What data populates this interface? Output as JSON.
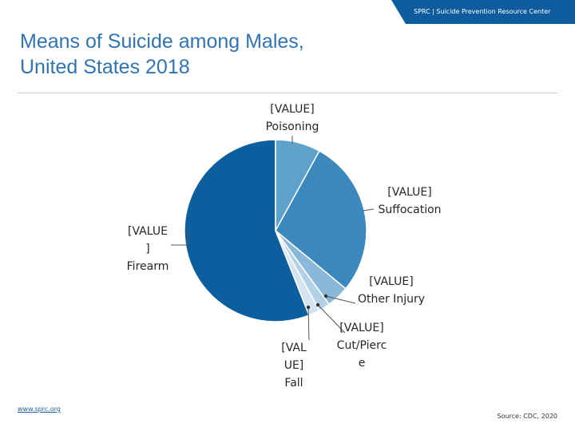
{
  "header": {
    "org_text": "SPRC  |  Suicide Prevention Resource Center"
  },
  "title": {
    "line1": "Means of Suicide among Males,",
    "line2": "United States 2018"
  },
  "colors": {
    "bar": "#0e5c9e",
    "firearm": "#0d5e9f",
    "poisoning": "#5ea1cb",
    "suffocation": "#3a88bd",
    "other_injury": "#8ab8d8",
    "cut": "#b3d1e6",
    "fall": "#d3e4f0"
  },
  "chart_data": {
    "type": "pie",
    "title": "Means of Suicide among Males, United States 2018",
    "slices": [
      {
        "name": "Firearm",
        "value": 56,
        "value_label": "[VALUE",
        "value_label_2": "]",
        "name_label": "Firearm"
      },
      {
        "name": "Poisoning",
        "value": 8,
        "value_label": "[VALUE]",
        "name_label": "Poisoning"
      },
      {
        "name": "Suffocation",
        "value": 28,
        "value_label": "[VALUE]",
        "name_label": "Suffocation"
      },
      {
        "name": "Other Injury",
        "value": 4,
        "value_label": "[VALUE]",
        "name_label": "Other Injury"
      },
      {
        "name": "Cut/Pierce",
        "value": 2,
        "value_label": "[VALUE]",
        "name_label_1": "Cut/Pierc",
        "name_label_2": "e"
      },
      {
        "name": "Fall",
        "value": 2,
        "value_label_1": "[VAL",
        "value_label_2": "UE]",
        "name_label": "Fall"
      }
    ]
  },
  "footer": {
    "website": "www.sprc.org",
    "source": "Source: CDC, 2020"
  }
}
